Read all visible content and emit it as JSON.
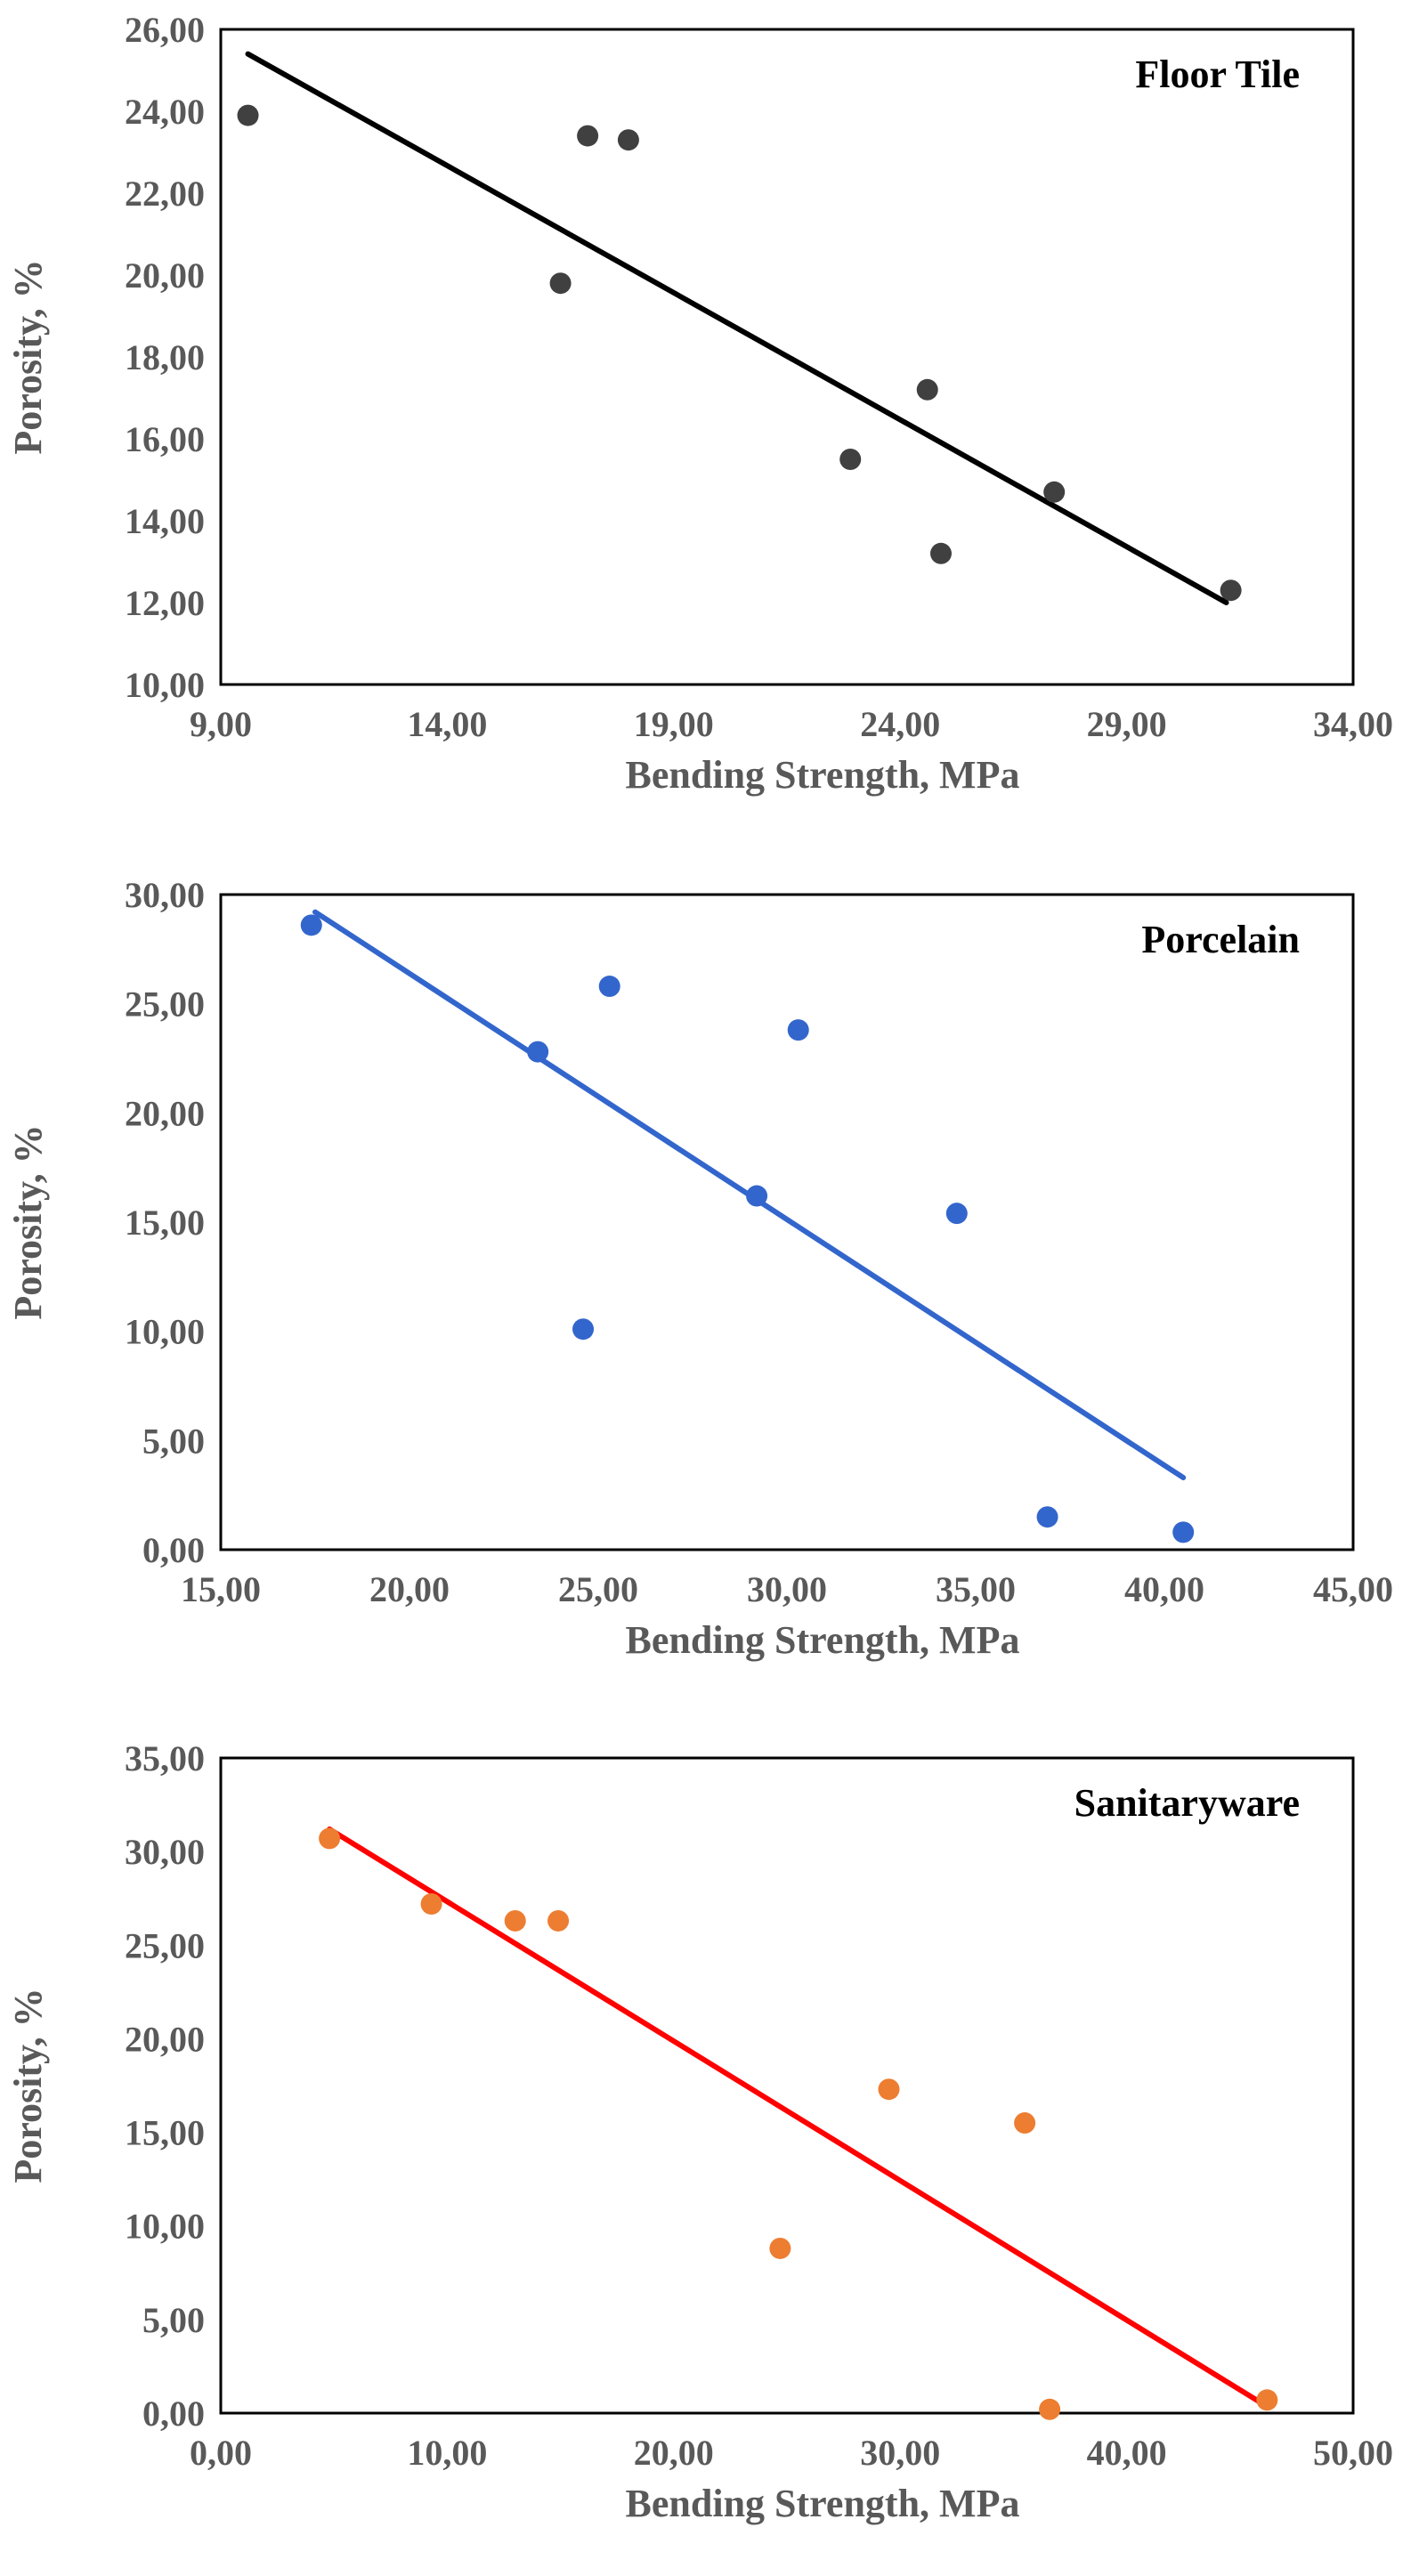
{
  "chart_data": [
    {
      "type": "scatter",
      "title": "Floor Tile",
      "xlabel": "Bending Strength, MPa",
      "ylabel": "Porosity, %",
      "xlim": [
        9,
        34
      ],
      "ylim": [
        10,
        26
      ],
      "xticks": [
        "9,00",
        "14,00",
        "19,00",
        "24,00",
        "29,00",
        "34,00"
      ],
      "yticks": [
        "10,00",
        "12,00",
        "14,00",
        "16,00",
        "18,00",
        "20,00",
        "22,00",
        "24,00",
        "26,00"
      ],
      "grid": false,
      "color": "#404040",
      "trend_color": "#000000",
      "points": [
        [
          9.6,
          23.9
        ],
        [
          16.5,
          19.8
        ],
        [
          17.1,
          23.4
        ],
        [
          18.0,
          23.3
        ],
        [
          22.9,
          15.5
        ],
        [
          24.6,
          17.2
        ],
        [
          24.9,
          13.2
        ],
        [
          27.4,
          14.7
        ],
        [
          31.3,
          12.3
        ]
      ],
      "trendline": [
        [
          9.6,
          25.4
        ],
        [
          31.2,
          12.0
        ]
      ]
    },
    {
      "type": "scatter",
      "title": "Porcelain",
      "xlabel": "Bending Strength, MPa",
      "ylabel": "Porosity, %",
      "xlim": [
        15,
        45
      ],
      "ylim": [
        0,
        30
      ],
      "xticks": [
        "15,00",
        "20,00",
        "25,00",
        "30,00",
        "35,00",
        "40,00",
        "45,00"
      ],
      "yticks": [
        "0,00",
        "5,00",
        "10,00",
        "15,00",
        "20,00",
        "25,00",
        "30,00"
      ],
      "grid": false,
      "color": "#3366cc",
      "trend_color": "#3366cc",
      "points": [
        [
          17.4,
          28.6
        ],
        [
          23.4,
          22.8
        ],
        [
          24.6,
          10.1
        ],
        [
          25.3,
          25.8
        ],
        [
          29.2,
          16.2
        ],
        [
          30.3,
          23.8
        ],
        [
          34.5,
          15.4
        ],
        [
          36.9,
          1.5
        ],
        [
          40.5,
          0.8
        ]
      ],
      "trendline": [
        [
          17.5,
          29.2
        ],
        [
          40.5,
          3.3
        ]
      ]
    },
    {
      "type": "scatter",
      "title": "Sanitaryware",
      "xlabel": "Bending Strength, MPa",
      "ylabel": "Porosity, %",
      "xlim": [
        0,
        50
      ],
      "ylim": [
        0,
        35
      ],
      "xticks": [
        "0,00",
        "10,00",
        "20,00",
        "30,00",
        "40,00",
        "50,00"
      ],
      "yticks": [
        "0,00",
        "5,00",
        "10,00",
        "15,00",
        "20,00",
        "25,00",
        "30,00",
        "35,00"
      ],
      "grid": false,
      "color": "#ed7d31",
      "trend_color": "#ff0000",
      "points": [
        [
          4.8,
          30.7
        ],
        [
          9.3,
          27.2
        ],
        [
          13.0,
          26.3
        ],
        [
          14.9,
          26.3
        ],
        [
          24.7,
          8.8
        ],
        [
          29.5,
          17.3
        ],
        [
          35.5,
          15.5
        ],
        [
          36.6,
          0.2
        ],
        [
          46.2,
          0.7
        ]
      ],
      "trendline": [
        [
          4.8,
          31.2
        ],
        [
          46.0,
          0.5
        ]
      ]
    }
  ]
}
